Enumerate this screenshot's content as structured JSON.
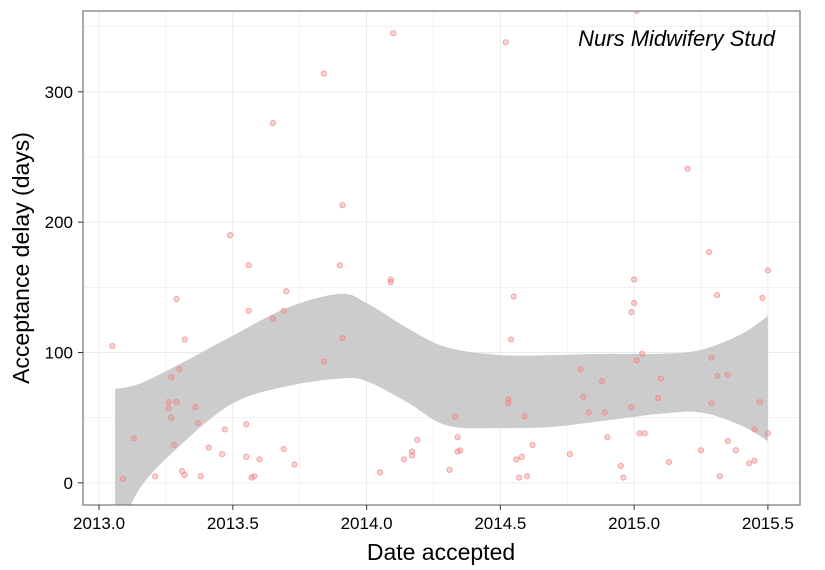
{
  "chart_data": {
    "type": "scatter",
    "title": "",
    "annotation": "Nurs Midwifery Stud",
    "xlabel": "Date accepted",
    "ylabel": "Acceptance delay (days)",
    "xlim": [
      2012.94,
      2015.62
    ],
    "ylim": [
      -17,
      362
    ],
    "x_ticks": [
      2013.0,
      2013.5,
      2014.0,
      2014.5,
      2015.0,
      2015.5
    ],
    "x_tick_labels": [
      "2013.0",
      "2013.5",
      "2014.0",
      "2014.5",
      "2015.0",
      "2015.5"
    ],
    "y_ticks": [
      0,
      100,
      200,
      300
    ],
    "y_tick_labels": [
      "0",
      "100",
      "200",
      "300"
    ],
    "grid": true,
    "colors": {
      "points": "#f08080",
      "ribbon": "#cccccc",
      "grid": "#ebebeb",
      "border": "#7f7f7f"
    },
    "points": [
      {
        "x": 2013.05,
        "y": 105
      },
      {
        "x": 2013.09,
        "y": 3
      },
      {
        "x": 2013.13,
        "y": 34
      },
      {
        "x": 2013.21,
        "y": 5
      },
      {
        "x": 2013.26,
        "y": 62
      },
      {
        "x": 2013.26,
        "y": 57
      },
      {
        "x": 2013.27,
        "y": 50
      },
      {
        "x": 2013.27,
        "y": 81
      },
      {
        "x": 2013.28,
        "y": 29
      },
      {
        "x": 2013.29,
        "y": 62
      },
      {
        "x": 2013.29,
        "y": 141
      },
      {
        "x": 2013.3,
        "y": 87
      },
      {
        "x": 2013.31,
        "y": 9
      },
      {
        "x": 2013.32,
        "y": 6
      },
      {
        "x": 2013.32,
        "y": 110
      },
      {
        "x": 2013.36,
        "y": 58
      },
      {
        "x": 2013.37,
        "y": 46
      },
      {
        "x": 2013.38,
        "y": 5
      },
      {
        "x": 2013.41,
        "y": 27
      },
      {
        "x": 2013.46,
        "y": 22
      },
      {
        "x": 2013.47,
        "y": 41
      },
      {
        "x": 2013.49,
        "y": 190
      },
      {
        "x": 2013.55,
        "y": 45
      },
      {
        "x": 2013.55,
        "y": 20
      },
      {
        "x": 2013.56,
        "y": 132
      },
      {
        "x": 2013.56,
        "y": 167
      },
      {
        "x": 2013.57,
        "y": 4
      },
      {
        "x": 2013.58,
        "y": 5
      },
      {
        "x": 2013.6,
        "y": 18
      },
      {
        "x": 2013.65,
        "y": 126
      },
      {
        "x": 2013.65,
        "y": 276
      },
      {
        "x": 2013.69,
        "y": 26
      },
      {
        "x": 2013.69,
        "y": 132
      },
      {
        "x": 2013.7,
        "y": 147
      },
      {
        "x": 2013.73,
        "y": 14
      },
      {
        "x": 2013.84,
        "y": 314
      },
      {
        "x": 2013.84,
        "y": 93
      },
      {
        "x": 2013.9,
        "y": 167
      },
      {
        "x": 2013.91,
        "y": 111
      },
      {
        "x": 2013.91,
        "y": 213
      },
      {
        "x": 2014.05,
        "y": 8
      },
      {
        "x": 2014.09,
        "y": 154
      },
      {
        "x": 2014.09,
        "y": 156
      },
      {
        "x": 2014.1,
        "y": 345
      },
      {
        "x": 2014.14,
        "y": 18
      },
      {
        "x": 2014.17,
        "y": 24
      },
      {
        "x": 2014.17,
        "y": 21
      },
      {
        "x": 2014.19,
        "y": 33
      },
      {
        "x": 2014.31,
        "y": 10
      },
      {
        "x": 2014.33,
        "y": 51
      },
      {
        "x": 2014.34,
        "y": 24
      },
      {
        "x": 2014.34,
        "y": 35
      },
      {
        "x": 2014.35,
        "y": 25
      },
      {
        "x": 2014.52,
        "y": 338
      },
      {
        "x": 2014.53,
        "y": 64
      },
      {
        "x": 2014.53,
        "y": 61
      },
      {
        "x": 2014.54,
        "y": 110
      },
      {
        "x": 2014.55,
        "y": 143
      },
      {
        "x": 2014.56,
        "y": 18
      },
      {
        "x": 2014.57,
        "y": 4
      },
      {
        "x": 2014.58,
        "y": 20
      },
      {
        "x": 2014.59,
        "y": 51
      },
      {
        "x": 2014.6,
        "y": 5
      },
      {
        "x": 2014.62,
        "y": 29
      },
      {
        "x": 2014.76,
        "y": 22
      },
      {
        "x": 2014.8,
        "y": 87
      },
      {
        "x": 2014.81,
        "y": 66
      },
      {
        "x": 2014.83,
        "y": 54
      },
      {
        "x": 2014.88,
        "y": 78
      },
      {
        "x": 2014.89,
        "y": 54
      },
      {
        "x": 2014.9,
        "y": 35
      },
      {
        "x": 2014.95,
        "y": 13
      },
      {
        "x": 2014.96,
        "y": 4
      },
      {
        "x": 2014.99,
        "y": 58
      },
      {
        "x": 2014.99,
        "y": 131
      },
      {
        "x": 2015.0,
        "y": 138
      },
      {
        "x": 2015.0,
        "y": 156
      },
      {
        "x": 2015.01,
        "y": 94
      },
      {
        "x": 2015.01,
        "y": 362
      },
      {
        "x": 2015.02,
        "y": 38
      },
      {
        "x": 2015.03,
        "y": 99
      },
      {
        "x": 2015.04,
        "y": 38
      },
      {
        "x": 2015.09,
        "y": 65
      },
      {
        "x": 2015.1,
        "y": 80
      },
      {
        "x": 2015.13,
        "y": 16
      },
      {
        "x": 2015.2,
        "y": 241
      },
      {
        "x": 2015.25,
        "y": 25
      },
      {
        "x": 2015.28,
        "y": 177
      },
      {
        "x": 2015.29,
        "y": 96
      },
      {
        "x": 2015.29,
        "y": 61
      },
      {
        "x": 2015.31,
        "y": 144
      },
      {
        "x": 2015.31,
        "y": 82
      },
      {
        "x": 2015.32,
        "y": 5
      },
      {
        "x": 2015.35,
        "y": 83
      },
      {
        "x": 2015.35,
        "y": 32
      },
      {
        "x": 2015.38,
        "y": 25
      },
      {
        "x": 2015.43,
        "y": 15
      },
      {
        "x": 2015.45,
        "y": 17
      },
      {
        "x": 2015.45,
        "y": 41
      },
      {
        "x": 2015.47,
        "y": 62
      },
      {
        "x": 2015.48,
        "y": 142
      },
      {
        "x": 2015.5,
        "y": 38
      },
      {
        "x": 2015.5,
        "y": 163
      }
    ],
    "smooth_band": [
      {
        "x": 2013.06,
        "lower": -47,
        "upper": 72
      },
      {
        "x": 2013.15,
        "lower": -5,
        "upper": 76
      },
      {
        "x": 2013.3,
        "lower": 28,
        "upper": 91
      },
      {
        "x": 2013.5,
        "lower": 61,
        "upper": 113
      },
      {
        "x": 2013.7,
        "lower": 74,
        "upper": 134
      },
      {
        "x": 2013.9,
        "lower": 80,
        "upper": 145
      },
      {
        "x": 2014.0,
        "lower": 78,
        "upper": 138
      },
      {
        "x": 2014.15,
        "lower": 62,
        "upper": 119
      },
      {
        "x": 2014.3,
        "lower": 44,
        "upper": 104
      },
      {
        "x": 2014.5,
        "lower": 42,
        "upper": 98
      },
      {
        "x": 2014.7,
        "lower": 43,
        "upper": 98
      },
      {
        "x": 2014.9,
        "lower": 48,
        "upper": 99
      },
      {
        "x": 2015.1,
        "lower": 53,
        "upper": 99
      },
      {
        "x": 2015.25,
        "lower": 54,
        "upper": 102
      },
      {
        "x": 2015.4,
        "lower": 44,
        "upper": 114
      },
      {
        "x": 2015.5,
        "lower": 32,
        "upper": 128
      }
    ]
  }
}
